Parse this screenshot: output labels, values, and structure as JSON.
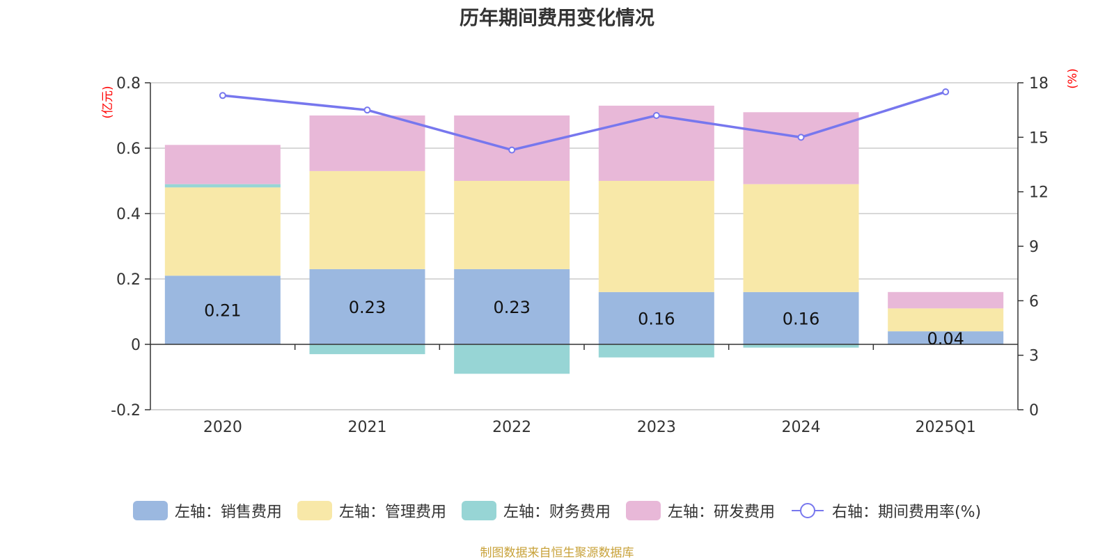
{
  "title": "历年期间费用变化情况",
  "source_note": "制图数据来自恒生聚源数据库",
  "chart_data": {
    "type": "bar",
    "stacked": true,
    "title": "历年期间费用变化情况",
    "categories": [
      "2020",
      "2021",
      "2022",
      "2023",
      "2024",
      "2025Q1"
    ],
    "left_axis": {
      "unit": "(亿元)",
      "ylim": [
        -0.2,
        0.8
      ],
      "ticks": [
        "-0.2",
        "0",
        "0.2",
        "0.4",
        "0.6",
        "0.8"
      ]
    },
    "right_axis": {
      "unit": "(%)",
      "ylim": [
        0,
        18
      ],
      "ticks": [
        "0",
        "3",
        "6",
        "9",
        "12",
        "15",
        "18"
      ]
    },
    "grid": true,
    "legend_position": "bottom",
    "series": [
      {
        "name": "左轴：销售费用",
        "axis": "left",
        "color": "#9bb8e0",
        "values": [
          0.21,
          0.23,
          0.23,
          0.16,
          0.16,
          0.04
        ],
        "labels": [
          "0.21",
          "0.23",
          "0.23",
          "0.16",
          "0.16",
          "0.04"
        ]
      },
      {
        "name": "左轴：管理费用",
        "axis": "left",
        "color": "#f8e8a8",
        "values": [
          0.27,
          0.3,
          0.27,
          0.34,
          0.33,
          0.07
        ]
      },
      {
        "name": "左轴：财务费用",
        "axis": "left",
        "color": "#97d5d5",
        "values": [
          0.01,
          -0.03,
          -0.09,
          -0.04,
          -0.01,
          0.0
        ]
      },
      {
        "name": "左轴：研发费用",
        "axis": "left",
        "color": "#e8b8d8",
        "values": [
          0.12,
          0.17,
          0.2,
          0.23,
          0.22,
          0.05
        ]
      },
      {
        "name": "右轴：期间费用率(%)",
        "axis": "right",
        "type": "line",
        "color": "#7777ee",
        "values": [
          17.3,
          16.5,
          14.3,
          16.2,
          15.0,
          17.5
        ]
      }
    ]
  }
}
